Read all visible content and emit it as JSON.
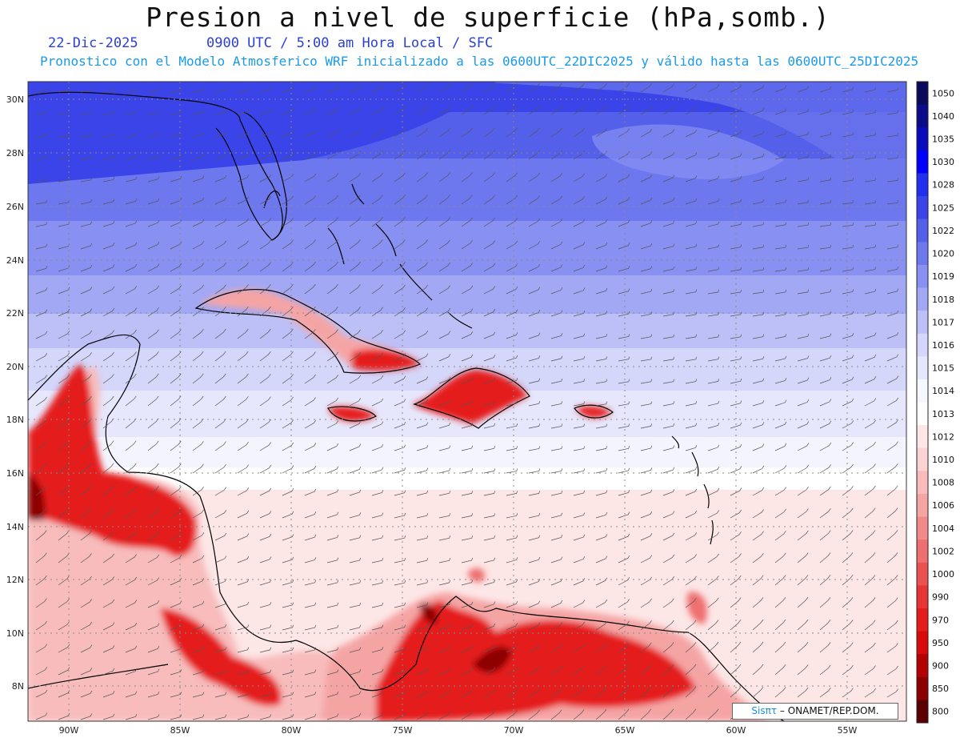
{
  "header": {
    "title": "Presion a nivel de superficie (hPa,somb.)",
    "date": "22-Dic-2025",
    "time_info": "0900 UTC / 5:00 am Hora Local / SFC",
    "model_info": "Pronostico con el Modelo Atmosferico WRF inicializado a las 0600UTC_22DIC2025 y válido hasta las  0600UTC_25DIC2025"
  },
  "map": {
    "lat_labels": [
      "30N",
      "28N",
      "26N",
      "24N",
      "22N",
      "20N",
      "18N",
      "16N",
      "14N",
      "12N",
      "10N",
      "8N"
    ],
    "lon_labels": [
      "90W",
      "85W",
      "80W",
      "75W",
      "70W",
      "65W",
      "60W",
      "55W"
    ],
    "colorbar": {
      "levels": [
        "1050",
        "1040",
        "1035",
        "1030",
        "1028",
        "1025",
        "1022",
        "1020",
        "1019",
        "1018",
        "1017",
        "1016",
        "1015",
        "1014",
        "1013",
        "1012",
        "1010",
        "1008",
        "1006",
        "1004",
        "1002",
        "1000",
        "990",
        "970",
        "950",
        "900",
        "850",
        "800"
      ],
      "colors": [
        "#0a0a5a",
        "#0c0c8a",
        "#0a0abf",
        "#0000ff",
        "#2030ee",
        "#3a44e8",
        "#5560ea",
        "#6e78ee",
        "#8890f2",
        "#a2a8f4",
        "#bcc0f7",
        "#d4d6fa",
        "#e6e7fc",
        "#f7f7ff",
        "#ffffff",
        "#fde6e6",
        "#fbd3d3",
        "#f8bcbc",
        "#f5a4a4",
        "#f28a8a",
        "#ee6f6f",
        "#ea5252",
        "#e83434",
        "#e51c1c",
        "#d80a0a",
        "#b40202",
        "#8c0000",
        "#5a0000"
      ]
    },
    "field_colors": {
      "high": "#3a44e8",
      "mid": "#a2a8f4",
      "neutral": "#ffffff",
      "low": "#f8bcbc",
      "very_low": "#e51c1c"
    }
  },
  "credit": {
    "brand": "Sisπτ",
    "text": "– ONAMET/REP.DOM."
  }
}
